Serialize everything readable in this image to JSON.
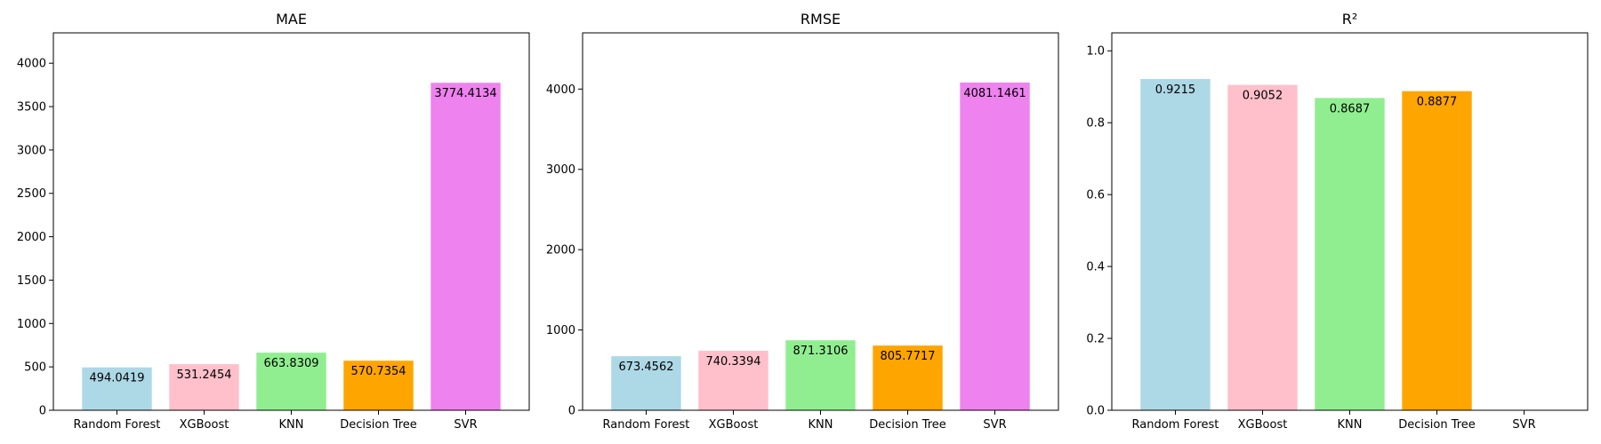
{
  "chart_data": [
    {
      "type": "bar",
      "title": "MAE",
      "categories": [
        "Random Forest",
        "XGBoost",
        "KNN",
        "Decision Tree",
        "SVR"
      ],
      "values": [
        494.0419,
        531.2454,
        663.8309,
        570.7354,
        3774.4134
      ],
      "labels": [
        "494.0419",
        "531.2454",
        "663.8309",
        "570.7354",
        "3774.4134"
      ],
      "colors": [
        "#add8e6",
        "#ffc0cb",
        "#90ee90",
        "#ffa500",
        "#ee82ee"
      ],
      "ylim": [
        0,
        4350
      ],
      "yticks": [
        0,
        500,
        1000,
        1500,
        2000,
        2500,
        3000,
        3500,
        4000
      ],
      "xlabel": "",
      "ylabel": "",
      "grid": false
    },
    {
      "type": "bar",
      "title": "RMSE",
      "categories": [
        "Random Forest",
        "XGBoost",
        "KNN",
        "Decision Tree",
        "SVR"
      ],
      "values": [
        673.4562,
        740.3394,
        871.3106,
        805.7717,
        4081.1461
      ],
      "labels": [
        "673.4562",
        "740.3394",
        "871.3106",
        "805.7717",
        "4081.1461"
      ],
      "colors": [
        "#add8e6",
        "#ffc0cb",
        "#90ee90",
        "#ffa500",
        "#ee82ee"
      ],
      "ylim": [
        0,
        4700
      ],
      "yticks": [
        0,
        1000,
        2000,
        3000,
        4000
      ],
      "xlabel": "",
      "ylabel": "",
      "grid": false
    },
    {
      "type": "bar",
      "title": "R²",
      "categories": [
        "Random Forest",
        "XGBoost",
        "KNN",
        "Decision Tree",
        "SVR"
      ],
      "values": [
        0.9215,
        0.9052,
        0.8687,
        0.8877,
        null
      ],
      "labels": [
        "0.9215",
        "0.9052",
        "0.8687",
        "0.8877",
        ""
      ],
      "colors": [
        "#add8e6",
        "#ffc0cb",
        "#90ee90",
        "#ffa500",
        "#ee82ee"
      ],
      "ylim": [
        0,
        1.05
      ],
      "yticks": [
        0.0,
        0.2,
        0.4,
        0.6,
        0.8,
        1.0
      ],
      "ytick_labels": [
        "0.0",
        "0.2",
        "0.4",
        "0.6",
        "0.8",
        "1.0"
      ],
      "xlabel": "",
      "ylabel": "",
      "grid": false
    }
  ]
}
